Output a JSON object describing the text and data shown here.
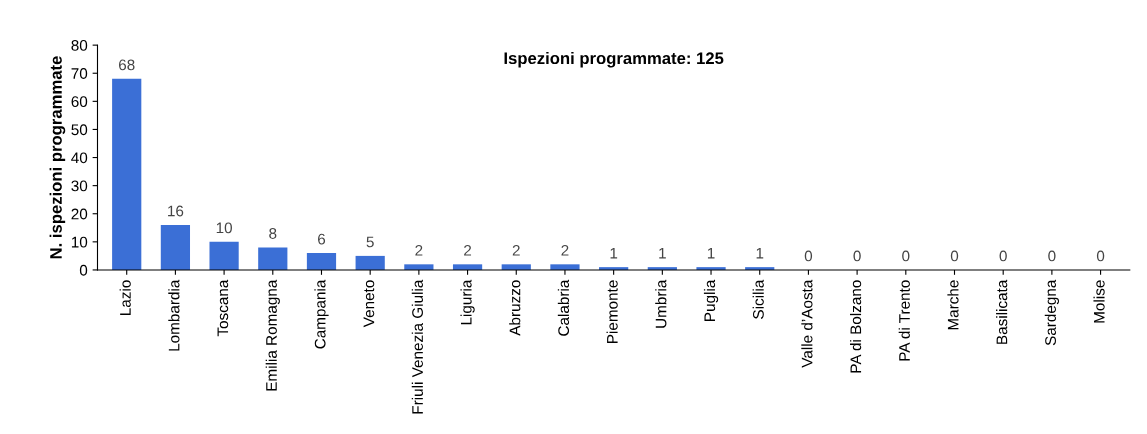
{
  "chart_data": {
    "type": "bar",
    "ylabel": "N. ispezioni programmate",
    "annotations": [
      "Ispezioni programmate: 125"
    ],
    "categories": [
      "Lazio",
      "Lombardia",
      "Toscana",
      "Emilia Romagna",
      "Campania",
      "Veneto",
      "Friuli Venezia Giulia",
      "Liguria",
      "Abruzzo",
      "Calabria",
      "Piemonte",
      "Umbria",
      "Puglia",
      "Sicilia",
      "Valle d’Aosta",
      "PA di Bolzano",
      "PA di Trento",
      "Marche",
      "Basilicata",
      "Sardegna",
      "Molise"
    ],
    "values": [
      68,
      16,
      10,
      8,
      6,
      5,
      2,
      2,
      2,
      2,
      1,
      1,
      1,
      1,
      0,
      0,
      0,
      0,
      0,
      0,
      0
    ],
    "color": "#3b6fd6",
    "data_labels": true,
    "ylim": [
      0,
      80
    ],
    "yticks": [
      0,
      10,
      20,
      30,
      40,
      50,
      60,
      70,
      80
    ],
    "grid": false,
    "legend": false
  }
}
